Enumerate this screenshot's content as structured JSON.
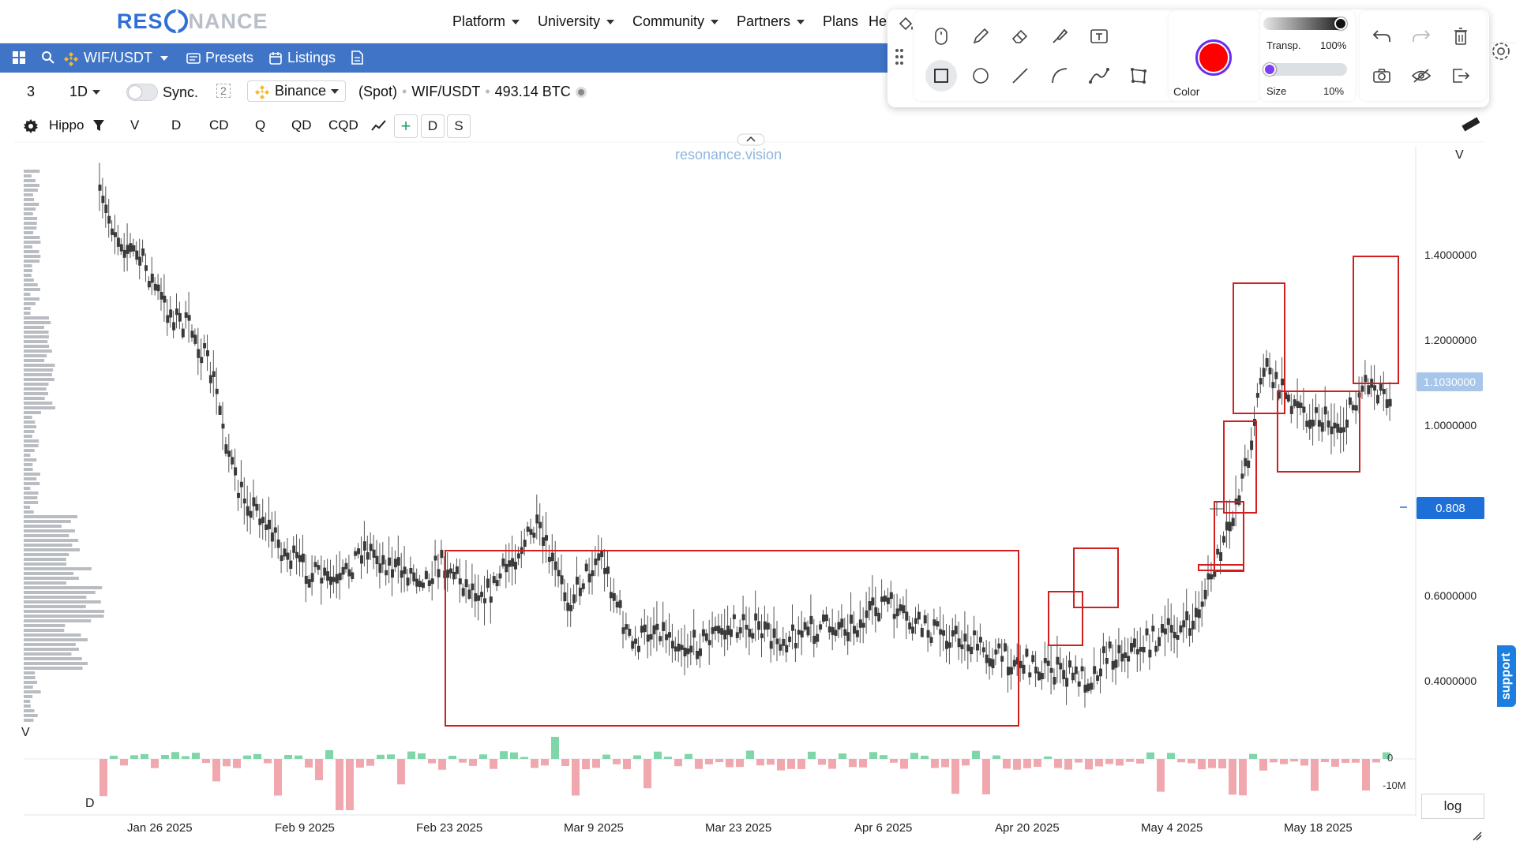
{
  "nav": {
    "logo_res": "RES",
    "logo_nance": "NANCE",
    "items": [
      "Platform",
      "University",
      "Community",
      "Partners",
      "Plans",
      "Hel"
    ]
  },
  "bluebar": {
    "symbol": "WIF/USDT",
    "presets": "Presets",
    "listings": "Listings"
  },
  "toolbar3": {
    "layout_count": "3",
    "interval": "1D",
    "sync_label": "Sync.",
    "sync_badge": "2",
    "exchange": "Binance",
    "market_type": "(Spot)",
    "pair": "WIF/USDT",
    "volume": "493.14 BTC"
  },
  "toolbar4": {
    "indicator": "Hippo",
    "filters": [
      "V",
      "D",
      "CD",
      "Q",
      "QD",
      "CQD"
    ],
    "add": "+",
    "d": "D",
    "s": "S"
  },
  "chart": {
    "watermark": "resonance.vision",
    "top_right_label": "V",
    "left_panel_v": "V",
    "left_panel_d": "D",
    "y_labels": [
      "1.4000000",
      "1.2000000",
      "1.0000000",
      "0.6000000",
      "0.4000000"
    ],
    "last_price": "1.1030000",
    "crosshair_price": "0.808",
    "x_labels": [
      "Jan 26 2025",
      "Feb 9 2025",
      "Feb 23 2025",
      "Mar 9 2025",
      "Mar 23 2025",
      "Apr 6 2025",
      "Apr 20 2025",
      "May 4 2025",
      "May 18 2025"
    ],
    "delta_labels": [
      "0",
      "-10M"
    ],
    "scale_button": "log"
  },
  "drawing_toolbar": {
    "color_label": "Color",
    "color_value": "#ff0000",
    "transparency_label": "Transp.",
    "transparency_value": "100%",
    "size_label": "Size",
    "size_value": "10%",
    "tools_row1": [
      "paint-bucket-icon",
      "mouse-icon",
      "pencil-icon",
      "eraser-icon",
      "brush-icon",
      "text-tool-icon"
    ],
    "tools_row2": [
      "rectangle-tool-icon",
      "circle-tool-icon",
      "line-tool-icon",
      "arc-tool-icon",
      "curve-tool-icon",
      "polygon-tool-icon"
    ]
  },
  "support_tab": "support",
  "colors": {
    "accent_blue": "#3f74c6",
    "annotation_red": "#d11f1f",
    "delta_positive": "#7fd6a8",
    "delta_negative": "#f0a8ae"
  }
}
